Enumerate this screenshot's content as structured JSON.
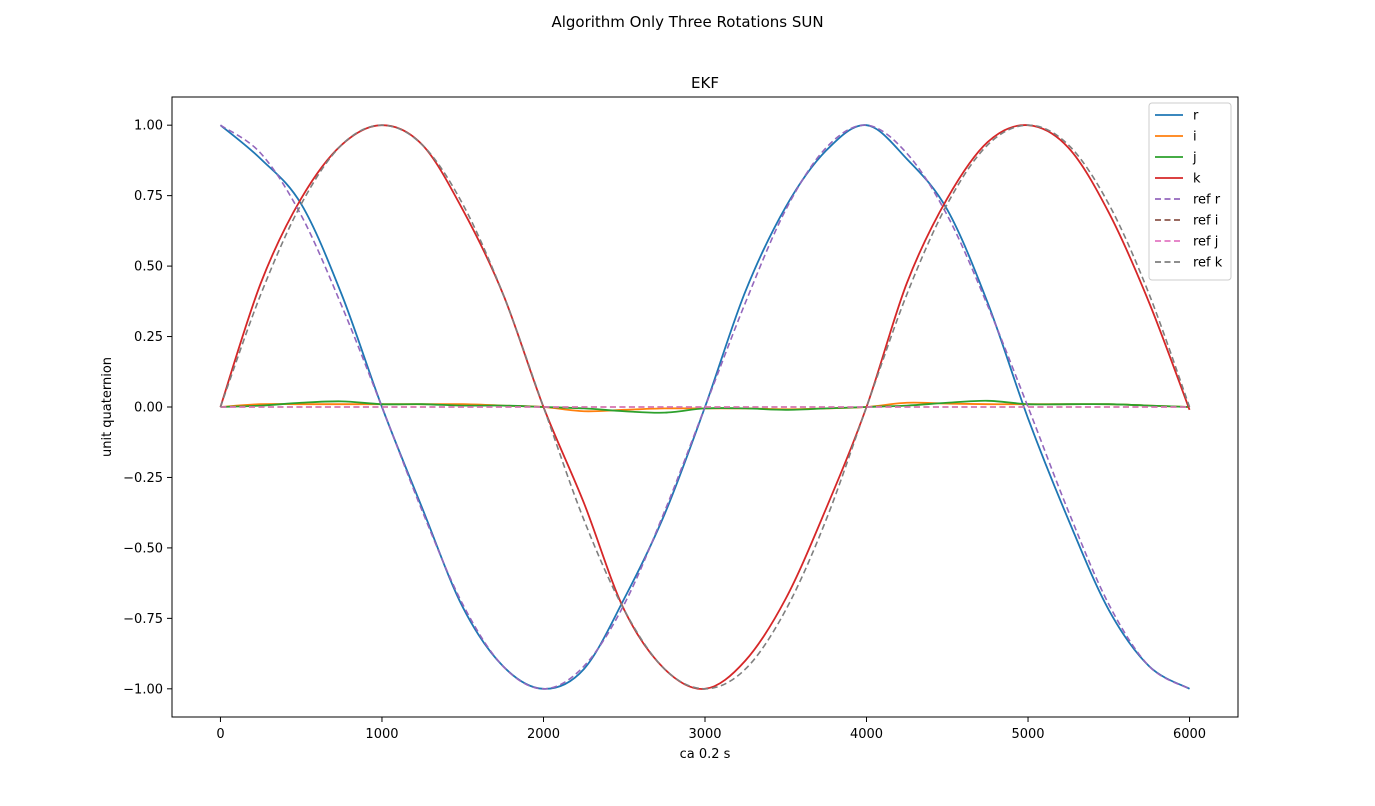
{
  "figure": {
    "suptitle": "Algorithm Only Three Rotations SUN"
  },
  "chart_data": {
    "type": "line",
    "title": "EKF",
    "xlabel": "ca 0.2 s",
    "ylabel": "unit quaternion",
    "xlim": [
      -300,
      6300
    ],
    "ylim": [
      -1.1,
      1.1
    ],
    "xticks": [
      0,
      1000,
      2000,
      3000,
      4000,
      5000,
      6000
    ],
    "xtick_labels": [
      "0",
      "1000",
      "2000",
      "3000",
      "4000",
      "5000",
      "6000"
    ],
    "yticks": [
      1.0,
      0.75,
      0.5,
      0.25,
      0.0,
      -0.25,
      -0.5,
      -0.75,
      -1.0
    ],
    "ytick_labels": [
      "1.00",
      "0.75",
      "0.50",
      "0.25",
      "0.00",
      "−0.25",
      "−0.50",
      "−0.75",
      "−1.00"
    ],
    "grid": false,
    "legend_position": "top-right",
    "x": [
      0,
      250,
      500,
      750,
      1000,
      1250,
      1500,
      1750,
      2000,
      2250,
      2500,
      2750,
      3000,
      3250,
      3500,
      3750,
      4000,
      4250,
      4500,
      4750,
      5000,
      5250,
      5500,
      5750,
      6000
    ],
    "series": [
      {
        "name": "r",
        "color": "#1f77b4",
        "dash": "solid",
        "values": [
          1.0,
          0.88,
          0.72,
          0.4,
          0.0,
          -0.36,
          -0.71,
          -0.92,
          -1.0,
          -0.93,
          -0.68,
          -0.38,
          0.0,
          0.41,
          0.71,
          0.91,
          1.0,
          0.88,
          0.7,
          0.37,
          -0.04,
          -0.4,
          -0.72,
          -0.92,
          -1.0
        ]
      },
      {
        "name": "i",
        "color": "#ff7f0e",
        "dash": "solid",
        "values": [
          0.0,
          0.01,
          0.01,
          0.01,
          0.01,
          0.01,
          0.01,
          0.005,
          0.0,
          -0.015,
          -0.01,
          -0.005,
          -0.005,
          -0.005,
          -0.008,
          -0.005,
          0.0,
          0.015,
          0.012,
          0.01,
          0.01,
          0.01,
          0.01,
          0.005,
          0.0
        ]
      },
      {
        "name": "j",
        "color": "#2ca02c",
        "dash": "solid",
        "values": [
          0.0,
          0.005,
          0.015,
          0.02,
          0.01,
          0.01,
          0.005,
          0.005,
          0.0,
          -0.005,
          -0.015,
          -0.02,
          -0.005,
          -0.005,
          -0.01,
          -0.005,
          0.0,
          0.005,
          0.015,
          0.022,
          0.01,
          0.01,
          0.01,
          0.005,
          0.0
        ]
      },
      {
        "name": "k",
        "color": "#d62728",
        "dash": "solid",
        "values": [
          0.0,
          0.44,
          0.74,
          0.93,
          1.0,
          0.93,
          0.7,
          0.4,
          0.0,
          -0.34,
          -0.72,
          -0.93,
          -1.0,
          -0.9,
          -0.68,
          -0.36,
          0.0,
          0.44,
          0.74,
          0.94,
          1.0,
          0.92,
          0.69,
          0.37,
          -0.01
        ]
      },
      {
        "name": "ref r",
        "color": "#9467bd",
        "dash": "dashed",
        "values": [
          1.0,
          0.9,
          0.68,
          0.36,
          0.0,
          -0.37,
          -0.7,
          -0.92,
          -1.0,
          -0.92,
          -0.7,
          -0.37,
          0.0,
          0.37,
          0.7,
          0.92,
          1.0,
          0.9,
          0.68,
          0.36,
          0.0,
          -0.37,
          -0.7,
          -0.92,
          -1.0
        ]
      },
      {
        "name": "ref i",
        "color": "#8c564b",
        "dash": "dashed",
        "values": [
          0.0,
          0.0,
          0.0,
          0.0,
          0.0,
          0.0,
          0.0,
          0.0,
          0.0,
          0.0,
          0.0,
          0.0,
          0.0,
          0.0,
          0.0,
          0.0,
          0.0,
          0.0,
          0.0,
          0.0,
          0.0,
          0.0,
          0.0,
          0.0,
          0.0
        ]
      },
      {
        "name": "ref j",
        "color": "#e377c2",
        "dash": "dashed",
        "values": [
          0.0,
          0.0,
          0.0,
          0.0,
          0.0,
          0.0,
          0.0,
          0.0,
          0.0,
          0.0,
          0.0,
          0.0,
          0.0,
          0.0,
          0.0,
          0.0,
          0.0,
          0.0,
          0.0,
          0.0,
          0.0,
          0.0,
          0.0,
          0.0,
          0.0
        ]
      },
      {
        "name": "ref k",
        "color": "#7f7f7f",
        "dash": "dashed",
        "values": [
          0.0,
          0.4,
          0.72,
          0.93,
          1.0,
          0.93,
          0.72,
          0.4,
          0.0,
          -0.4,
          -0.72,
          -0.93,
          -1.0,
          -0.93,
          -0.72,
          -0.4,
          0.0,
          0.4,
          0.72,
          0.93,
          1.0,
          0.93,
          0.72,
          0.4,
          0.0
        ]
      }
    ]
  }
}
